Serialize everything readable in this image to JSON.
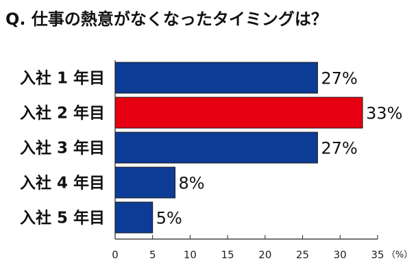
{
  "title": "Q. 仕事の熱意がなくなったタイミングは？",
  "colors": {
    "bar": "#0c3c96",
    "highlight": "#e60012",
    "axis": "#222222"
  },
  "chart_data": {
    "type": "bar",
    "orientation": "horizontal",
    "categories": [
      "入社 1 年目",
      "入社 2 年目",
      "入社 3 年目",
      "入社 4 年目",
      "入社 5 年目"
    ],
    "values": [
      27,
      33,
      27,
      8,
      5
    ],
    "value_labels": [
      "27%",
      "33%",
      "27%",
      "8%",
      "5%"
    ],
    "highlight_index": 1,
    "xlim": [
      0,
      35
    ],
    "xticks": [
      0,
      5,
      10,
      15,
      20,
      25,
      30,
      35
    ],
    "unit_label": "（%）",
    "grid": false
  }
}
